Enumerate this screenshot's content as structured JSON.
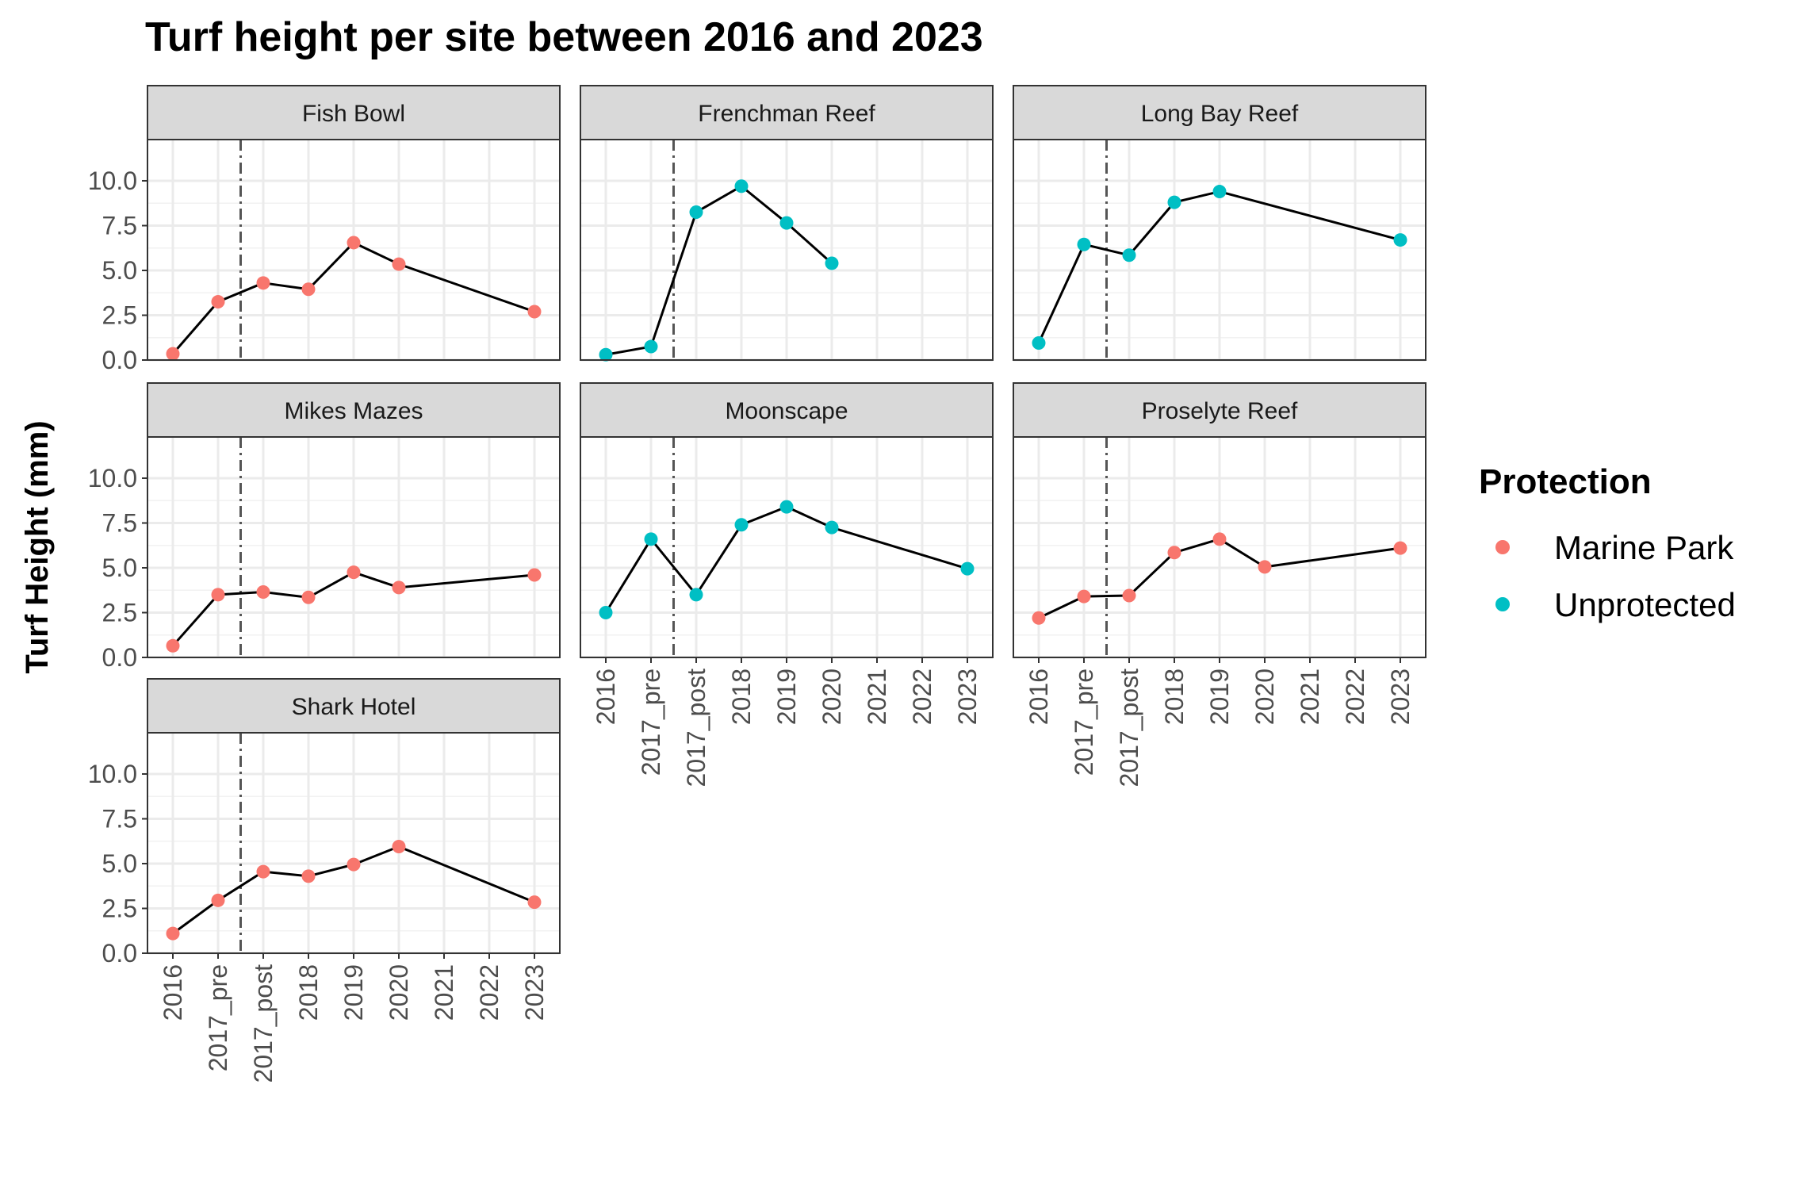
{
  "chart_data": {
    "type": "line",
    "title": "Turf height per site between 2016 and 2023",
    "ylabel": "Turf Height (mm)",
    "xlabel": "",
    "categories": [
      "2016",
      "2017_pre",
      "2017_post",
      "2018",
      "2019",
      "2020",
      "2021",
      "2022",
      "2023"
    ],
    "ylim": [
      0,
      12.3
    ],
    "yticks": [
      "0.0",
      "2.5",
      "5.0",
      "7.5",
      "10.0"
    ],
    "ytick_values": [
      0,
      2.5,
      5,
      7.5,
      10
    ],
    "vline_category_position": 2.5,
    "grid": true,
    "legend": {
      "title": "Protection",
      "placement": "right",
      "items": [
        {
          "label": "Marine Park",
          "color": "#F8766D"
        },
        {
          "label": "Unprotected",
          "color": "#00BFC4"
        }
      ]
    },
    "line_color": "#000000",
    "panel_layout_columns": 3,
    "panels": [
      {
        "site": "Fish Bowl",
        "protection": "Marine Park",
        "points": [
          {
            "x": "2016",
            "y": 0.35
          },
          {
            "x": "2017_pre",
            "y": 3.25
          },
          {
            "x": "2017_post",
            "y": 4.3
          },
          {
            "x": "2018",
            "y": 3.95
          },
          {
            "x": "2019",
            "y": 6.55
          },
          {
            "x": "2020",
            "y": 5.35
          },
          {
            "x": "2023",
            "y": 2.7
          }
        ]
      },
      {
        "site": "Frenchman Reef",
        "protection": "Unprotected",
        "points": [
          {
            "x": "2016",
            "y": 0.3
          },
          {
            "x": "2017_pre",
            "y": 0.75
          },
          {
            "x": "2017_post",
            "y": 8.25
          },
          {
            "x": "2018",
            "y": 9.7
          },
          {
            "x": "2019",
            "y": 7.65
          },
          {
            "x": "2020",
            "y": 5.4
          }
        ]
      },
      {
        "site": "Long Bay Reef",
        "protection": "Unprotected",
        "points": [
          {
            "x": "2016",
            "y": 0.95
          },
          {
            "x": "2017_pre",
            "y": 6.45
          },
          {
            "x": "2017_post",
            "y": 5.85
          },
          {
            "x": "2018",
            "y": 8.8
          },
          {
            "x": "2019",
            "y": 9.4
          },
          {
            "x": "2023",
            "y": 6.7
          }
        ]
      },
      {
        "site": "Mikes Mazes",
        "protection": "Marine Park",
        "points": [
          {
            "x": "2016",
            "y": 0.65
          },
          {
            "x": "2017_pre",
            "y": 3.5
          },
          {
            "x": "2017_post",
            "y": 3.65
          },
          {
            "x": "2018",
            "y": 3.35
          },
          {
            "x": "2019",
            "y": 4.75
          },
          {
            "x": "2020",
            "y": 3.9
          },
          {
            "x": "2023",
            "y": 4.6
          }
        ]
      },
      {
        "site": "Moonscape",
        "protection": "Unprotected",
        "points": [
          {
            "x": "2016",
            "y": 2.5
          },
          {
            "x": "2017_pre",
            "y": 6.6
          },
          {
            "x": "2017_post",
            "y": 3.5
          },
          {
            "x": "2018",
            "y": 7.4
          },
          {
            "x": "2019",
            "y": 8.4
          },
          {
            "x": "2020",
            "y": 7.25
          },
          {
            "x": "2023",
            "y": 4.95
          }
        ]
      },
      {
        "site": "Proselyte Reef",
        "protection": "Marine Park",
        "points": [
          {
            "x": "2016",
            "y": 2.2
          },
          {
            "x": "2017_pre",
            "y": 3.4
          },
          {
            "x": "2017_post",
            "y": 3.45
          },
          {
            "x": "2018",
            "y": 5.85
          },
          {
            "x": "2019",
            "y": 6.6
          },
          {
            "x": "2020",
            "y": 5.05
          },
          {
            "x": "2023",
            "y": 6.1
          }
        ]
      },
      {
        "site": "Shark Hotel",
        "protection": "Marine Park",
        "points": [
          {
            "x": "2016",
            "y": 1.1
          },
          {
            "x": "2017_pre",
            "y": 2.95
          },
          {
            "x": "2017_post",
            "y": 4.55
          },
          {
            "x": "2018",
            "y": 4.3
          },
          {
            "x": "2019",
            "y": 4.95
          },
          {
            "x": "2020",
            "y": 5.95
          },
          {
            "x": "2023",
            "y": 2.85
          }
        ]
      }
    ]
  }
}
